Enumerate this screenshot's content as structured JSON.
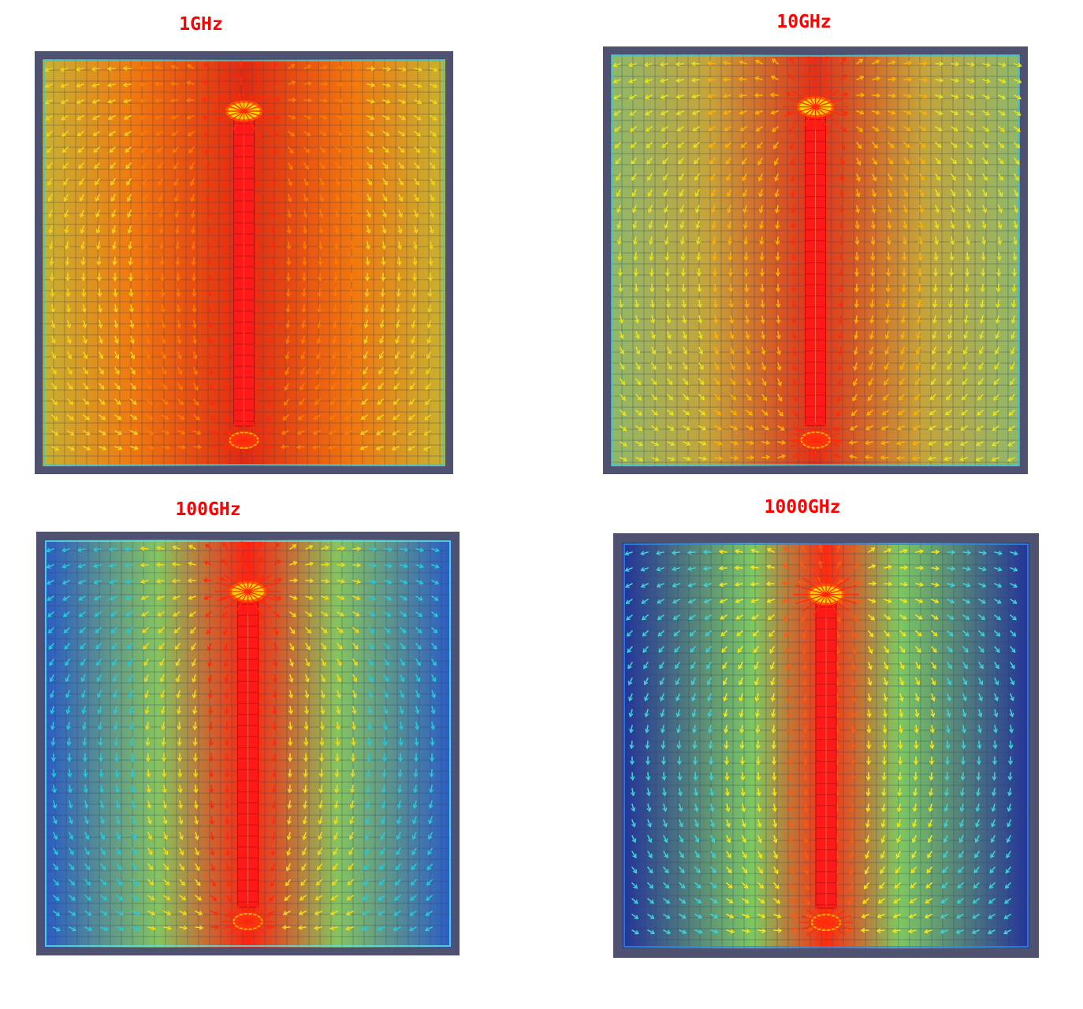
{
  "panels": [
    {
      "id": "p1",
      "title": "1GHz",
      "map": "warm"
    },
    {
      "id": "p2",
      "title": "10GHz",
      "map": "greenish"
    },
    {
      "id": "p3",
      "title": "100GHz",
      "map": "cool"
    },
    {
      "id": "p4",
      "title": "1000GHz",
      "map": "cold"
    }
  ],
  "colors": {
    "frame": "#4e5270",
    "title": "#ff0000",
    "conductor": "#ff1a1a",
    "hotspot": "#ffd400"
  }
}
